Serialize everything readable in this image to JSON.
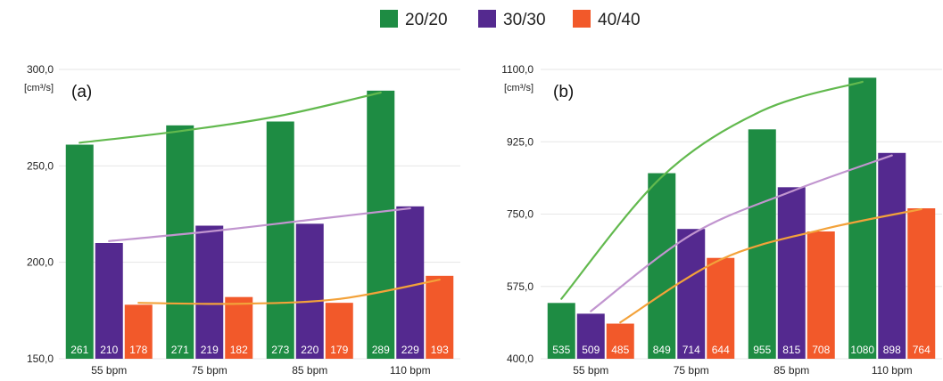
{
  "legend": [
    {
      "name": "20/20",
      "color": "#1e8c43"
    },
    {
      "name": "30/30",
      "color": "#54298f"
    },
    {
      "name": "40/40",
      "color": "#f2592a"
    }
  ],
  "trend_colors": [
    "#62b94e",
    "#c195cf",
    "#f3a23a"
  ],
  "chart_data": [
    {
      "type": "bar",
      "panel_label": "(a)",
      "ylabel": "[cm³/s]",
      "ylim": [
        150,
        300
      ],
      "yticks": [
        "150,0",
        "200,0",
        "250,0",
        "300,0"
      ],
      "grid": true,
      "legend_position": "top-center",
      "categories": [
        "55 bpm",
        "75 bpm",
        "85 bpm",
        "110 bpm"
      ],
      "series": [
        {
          "name": "20/20",
          "values": [
            261,
            271,
            273,
            289
          ]
        },
        {
          "name": "30/30",
          "values": [
            210,
            219,
            220,
            229
          ]
        },
        {
          "name": "40/40",
          "values": [
            178,
            182,
            179,
            193
          ]
        }
      ],
      "trendlines": [
        {
          "series": "20/20",
          "values": [
            262,
            268,
            276,
            288
          ]
        },
        {
          "series": "30/30",
          "values": [
            211,
            216,
            222,
            228
          ]
        },
        {
          "series": "40/40",
          "values": [
            179,
            178.5,
            181,
            191
          ]
        }
      ]
    },
    {
      "type": "bar",
      "panel_label": "(b)",
      "ylabel": "[cm³/s]",
      "ylim": [
        400,
        1100
      ],
      "yticks": [
        "400,0",
        "575,0",
        "750,0",
        "925,0",
        "1100,0"
      ],
      "grid": true,
      "legend_position": "top-center",
      "categories": [
        "55 bpm",
        "75 bpm",
        "85 bpm",
        "110 bpm"
      ],
      "series": [
        {
          "name": "20/20",
          "values": [
            535,
            849,
            955,
            1080
          ]
        },
        {
          "name": "30/30",
          "values": [
            509,
            714,
            815,
            898
          ]
        },
        {
          "name": "40/40",
          "values": [
            485,
            644,
            708,
            764
          ]
        }
      ],
      "trendlines": [
        {
          "series": "20/20",
          "values": [
            545,
            840,
            1000,
            1070
          ]
        },
        {
          "series": "30/30",
          "values": [
            515,
            700,
            805,
            892
          ]
        },
        {
          "series": "40/40",
          "values": [
            488,
            640,
            712,
            762
          ]
        }
      ]
    }
  ]
}
